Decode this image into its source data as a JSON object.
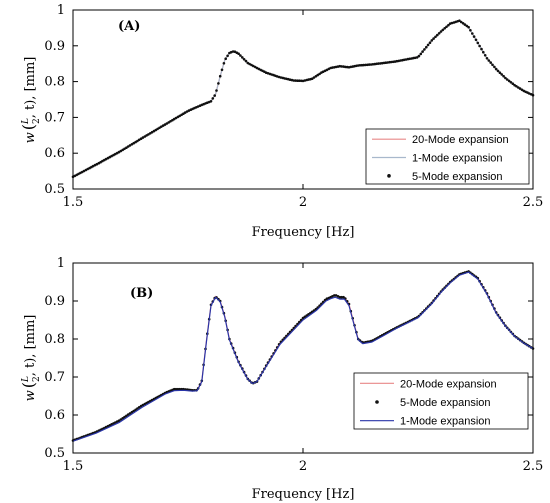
{
  "chart_data": [
    {
      "type": "line",
      "panel_label": "(A)",
      "xlabel": "Frequency [Hz]",
      "ylabel_parts": {
        "w": "w",
        "open": "(",
        "num": "L",
        "den": "2",
        "tail": ", t), [mm]"
      },
      "xlim": [
        1.5,
        2.5
      ],
      "ylim": [
        0.5,
        1.0
      ],
      "xticks": [
        "1.5",
        "2",
        "2.5"
      ],
      "yticks": [
        "0.5",
        "0.6",
        "0.7",
        "0.8",
        "0.9",
        "1"
      ],
      "legend_position": "bottom-right",
      "x": [
        1.5,
        1.55,
        1.6,
        1.65,
        1.7,
        1.75,
        1.78,
        1.8,
        1.81,
        1.82,
        1.83,
        1.84,
        1.85,
        1.86,
        1.87,
        1.88,
        1.9,
        1.92,
        1.95,
        1.98,
        2.0,
        2.02,
        2.04,
        2.06,
        2.08,
        2.1,
        2.12,
        2.15,
        2.2,
        2.25,
        2.28,
        2.3,
        2.32,
        2.34,
        2.36,
        2.38,
        2.4,
        2.42,
        2.44,
        2.46,
        2.48,
        2.5
      ],
      "series": [
        {
          "name": "20-Mode expansion",
          "color": "#e88888",
          "style": "line",
          "values": [
            0.534,
            0.568,
            0.603,
            0.642,
            0.68,
            0.718,
            0.735,
            0.745,
            0.765,
            0.815,
            0.86,
            0.88,
            0.885,
            0.878,
            0.865,
            0.852,
            0.838,
            0.825,
            0.812,
            0.803,
            0.802,
            0.808,
            0.825,
            0.838,
            0.843,
            0.84,
            0.845,
            0.848,
            0.856,
            0.868,
            0.915,
            0.94,
            0.962,
            0.97,
            0.952,
            0.908,
            0.865,
            0.835,
            0.81,
            0.79,
            0.774,
            0.762
          ]
        },
        {
          "name": "1-Mode expansion",
          "color": "#a8b8cc",
          "style": "line",
          "values": [
            0.534,
            0.568,
            0.603,
            0.642,
            0.68,
            0.718,
            0.735,
            0.745,
            0.765,
            0.815,
            0.86,
            0.88,
            0.885,
            0.878,
            0.865,
            0.852,
            0.838,
            0.825,
            0.812,
            0.803,
            0.802,
            0.808,
            0.825,
            0.838,
            0.843,
            0.84,
            0.845,
            0.848,
            0.856,
            0.868,
            0.915,
            0.94,
            0.962,
            0.97,
            0.952,
            0.908,
            0.865,
            0.835,
            0.81,
            0.79,
            0.774,
            0.762
          ]
        },
        {
          "name": "5-Mode expansion",
          "color": "#111111",
          "style": "dots",
          "values": [
            0.534,
            0.568,
            0.603,
            0.642,
            0.68,
            0.718,
            0.735,
            0.745,
            0.765,
            0.815,
            0.86,
            0.88,
            0.885,
            0.878,
            0.865,
            0.852,
            0.838,
            0.825,
            0.812,
            0.803,
            0.802,
            0.808,
            0.825,
            0.838,
            0.843,
            0.84,
            0.845,
            0.848,
            0.856,
            0.868,
            0.915,
            0.94,
            0.962,
            0.97,
            0.952,
            0.908,
            0.865,
            0.835,
            0.81,
            0.79,
            0.774,
            0.762
          ]
        }
      ]
    },
    {
      "type": "line",
      "panel_label": "(B)",
      "xlabel": "Frequency [Hz]",
      "ylabel_parts": {
        "w": "w",
        "open": "(",
        "num": "L",
        "den": "2",
        "tail": ", t), [mm]"
      },
      "xlim": [
        1.5,
        2.5
      ],
      "ylim": [
        0.5,
        1.0
      ],
      "xticks": [
        "1.5",
        "2",
        "2.5"
      ],
      "yticks": [
        "0.5",
        "0.6",
        "0.7",
        "0.8",
        "0.9",
        "1"
      ],
      "legend_position": "bottom-right",
      "x": [
        1.5,
        1.55,
        1.6,
        1.65,
        1.7,
        1.72,
        1.74,
        1.76,
        1.77,
        1.78,
        1.79,
        1.8,
        1.81,
        1.82,
        1.83,
        1.84,
        1.86,
        1.88,
        1.89,
        1.9,
        1.92,
        1.95,
        2.0,
        2.03,
        2.05,
        2.06,
        2.07,
        2.08,
        2.09,
        2.1,
        2.11,
        2.12,
        2.13,
        2.15,
        2.18,
        2.2,
        2.25,
        2.28,
        2.3,
        2.32,
        2.34,
        2.36,
        2.38,
        2.4,
        2.42,
        2.44,
        2.46,
        2.48,
        2.5
      ],
      "series": [
        {
          "name": "20-Mode expansion",
          "color": "#e88888",
          "style": "line",
          "values": [
            0.533,
            0.555,
            0.585,
            0.625,
            0.658,
            0.668,
            0.668,
            0.665,
            0.665,
            0.69,
            0.795,
            0.89,
            0.912,
            0.9,
            0.86,
            0.8,
            0.74,
            0.695,
            0.683,
            0.688,
            0.73,
            0.79,
            0.855,
            0.88,
            0.905,
            0.91,
            0.916,
            0.91,
            0.91,
            0.892,
            0.845,
            0.8,
            0.79,
            0.795,
            0.815,
            0.828,
            0.858,
            0.895,
            0.925,
            0.95,
            0.97,
            0.978,
            0.96,
            0.92,
            0.87,
            0.835,
            0.808,
            0.79,
            0.775
          ]
        },
        {
          "name": "5-Mode expansion",
          "color": "#111111",
          "style": "dots",
          "values": [
            0.533,
            0.555,
            0.585,
            0.625,
            0.658,
            0.668,
            0.668,
            0.665,
            0.665,
            0.69,
            0.795,
            0.89,
            0.912,
            0.9,
            0.86,
            0.8,
            0.74,
            0.695,
            0.683,
            0.688,
            0.73,
            0.79,
            0.855,
            0.88,
            0.905,
            0.91,
            0.916,
            0.91,
            0.91,
            0.892,
            0.845,
            0.8,
            0.79,
            0.795,
            0.815,
            0.828,
            0.858,
            0.895,
            0.925,
            0.95,
            0.97,
            0.978,
            0.96,
            0.92,
            0.87,
            0.835,
            0.808,
            0.79,
            0.775
          ]
        },
        {
          "name": "1-Mode expansion",
          "color": "#2a35a8",
          "style": "line",
          "values": [
            0.531,
            0.552,
            0.58,
            0.62,
            0.655,
            0.664,
            0.665,
            0.663,
            0.664,
            0.688,
            0.792,
            0.888,
            0.91,
            0.898,
            0.858,
            0.798,
            0.738,
            0.694,
            0.683,
            0.688,
            0.728,
            0.786,
            0.85,
            0.876,
            0.9,
            0.906,
            0.91,
            0.905,
            0.905,
            0.888,
            0.842,
            0.798,
            0.788,
            0.792,
            0.812,
            0.826,
            0.856,
            0.893,
            0.923,
            0.948,
            0.968,
            0.976,
            0.958,
            0.918,
            0.868,
            0.834,
            0.807,
            0.789,
            0.775
          ]
        }
      ]
    }
  ]
}
